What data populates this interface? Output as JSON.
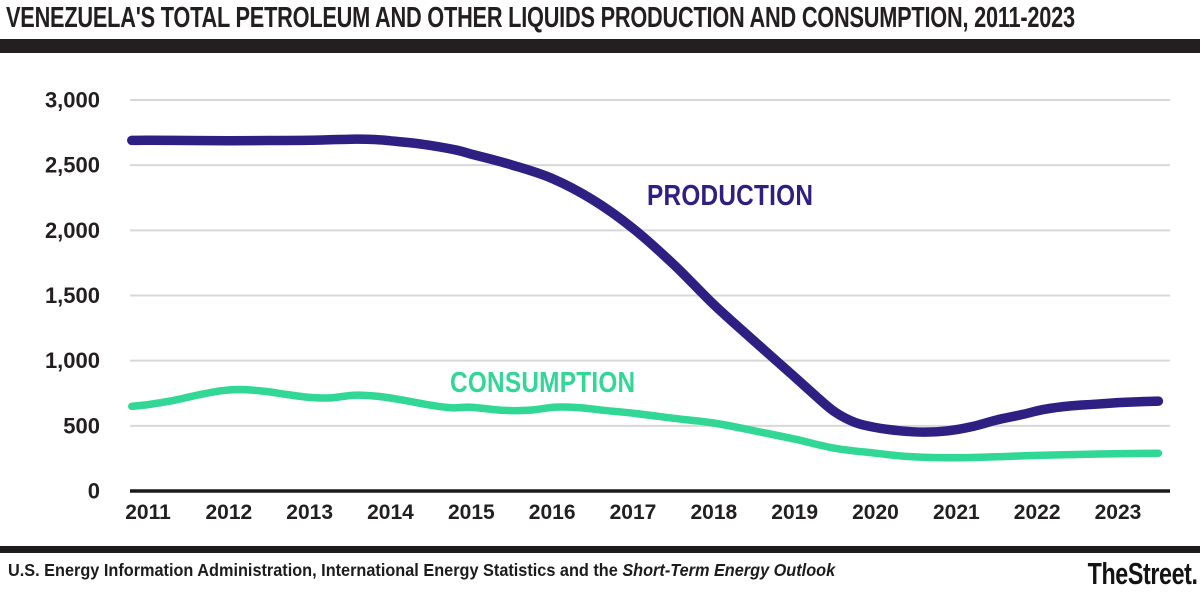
{
  "header": {
    "title": "VENEZUELA'S TOTAL PETROLEUM AND OTHER LIQUIDS PRODUCTION AND CONSUMPTION, 2011-2023"
  },
  "footer": {
    "source_prefix": "U.S. Energy Information Administration, International Energy Statistics and the ",
    "source_italic": "Short-Term Energy Outlook",
    "logo": "TheStreet."
  },
  "colors": {
    "grid": "#d8d8d8",
    "axis": "#1a1a1a",
    "text": "#231f20",
    "rule": "#231f20"
  },
  "chart_data": {
    "type": "line",
    "title": "VENEZUELA'S TOTAL PETROLEUM AND OTHER LIQUIDS PRODUCTION AND CONSUMPTION, 2011-2023",
    "xlabel": "",
    "ylabel": "",
    "ylim": [
      0,
      3000
    ],
    "xlim": [
      2010.8,
      2023.55
    ],
    "grid": "horizontal",
    "legend_position": "inline-labels",
    "y_ticks": [
      {
        "label": "3,000",
        "value": 3000
      },
      {
        "label": "2,500",
        "value": 2500
      },
      {
        "label": "2,000",
        "value": 2000
      },
      {
        "label": "1,500",
        "value": 1500
      },
      {
        "label": "1,000",
        "value": 1000
      },
      {
        "label": "500",
        "value": 500
      },
      {
        "label": "0",
        "value": 0
      }
    ],
    "x_ticks": [
      {
        "label": "2011",
        "year": 2011
      },
      {
        "label": "2012",
        "year": 2012
      },
      {
        "label": "2013",
        "year": 2013
      },
      {
        "label": "2014",
        "year": 2014
      },
      {
        "label": "2015",
        "year": 2015
      },
      {
        "label": "2016",
        "year": 2016
      },
      {
        "label": "2017",
        "year": 2017
      },
      {
        "label": "2018",
        "year": 2018
      },
      {
        "label": "2019",
        "year": 2019
      },
      {
        "label": "2020",
        "year": 2020
      },
      {
        "label": "2021",
        "year": 2021
      },
      {
        "label": "2022",
        "year": 2022
      },
      {
        "label": "2023",
        "year": 2023
      }
    ],
    "series": [
      {
        "name": "PRODUCTION",
        "color": "#2e2083",
        "points": [
          [
            2010.8,
            2690
          ],
          [
            2011,
            2691
          ],
          [
            2011.5,
            2689
          ],
          [
            2012,
            2687
          ],
          [
            2012.5,
            2689
          ],
          [
            2013,
            2691
          ],
          [
            2013.5,
            2699
          ],
          [
            2013.8,
            2697
          ],
          [
            2014,
            2687
          ],
          [
            2014.4,
            2660
          ],
          [
            2014.8,
            2618
          ],
          [
            2015,
            2585
          ],
          [
            2015.5,
            2502
          ],
          [
            2016,
            2398
          ],
          [
            2016.5,
            2235
          ],
          [
            2017,
            2015
          ],
          [
            2017.5,
            1740
          ],
          [
            2018,
            1430
          ],
          [
            2018.5,
            1150
          ],
          [
            2019,
            875
          ],
          [
            2019.25,
            735
          ],
          [
            2019.5,
            605
          ],
          [
            2019.75,
            525
          ],
          [
            2020,
            487
          ],
          [
            2020.3,
            462
          ],
          [
            2020.6,
            452
          ],
          [
            2020.9,
            462
          ],
          [
            2021.2,
            495
          ],
          [
            2021.5,
            545
          ],
          [
            2021.8,
            585
          ],
          [
            2022.1,
            628
          ],
          [
            2022.4,
            652
          ],
          [
            2022.7,
            665
          ],
          [
            2023,
            678
          ],
          [
            2023.3,
            686
          ],
          [
            2023.5,
            690
          ]
        ]
      },
      {
        "name": "CONSUMPTION",
        "color": "#31d795",
        "points": [
          [
            2010.8,
            650
          ],
          [
            2011,
            663
          ],
          [
            2011.3,
            693
          ],
          [
            2011.6,
            734
          ],
          [
            2011.9,
            769
          ],
          [
            2012.15,
            779
          ],
          [
            2012.45,
            764
          ],
          [
            2012.7,
            742
          ],
          [
            2013,
            718
          ],
          [
            2013.25,
            714
          ],
          [
            2013.55,
            735
          ],
          [
            2013.85,
            726
          ],
          [
            2014.2,
            692
          ],
          [
            2014.5,
            658
          ],
          [
            2014.75,
            638
          ],
          [
            2015,
            643
          ],
          [
            2015.35,
            621
          ],
          [
            2015.7,
            619
          ],
          [
            2016.05,
            644
          ],
          [
            2016.35,
            638
          ],
          [
            2016.7,
            615
          ],
          [
            2017,
            597
          ],
          [
            2017.5,
            558
          ],
          [
            2018,
            522
          ],
          [
            2018.5,
            462
          ],
          [
            2019,
            398
          ],
          [
            2019.5,
            328
          ],
          [
            2020,
            290
          ],
          [
            2020.4,
            265
          ],
          [
            2020.8,
            256
          ],
          [
            2021.2,
            257
          ],
          [
            2021.6,
            265
          ],
          [
            2022,
            273
          ],
          [
            2022.5,
            280
          ],
          [
            2023,
            286
          ],
          [
            2023.5,
            290
          ]
        ]
      }
    ]
  }
}
